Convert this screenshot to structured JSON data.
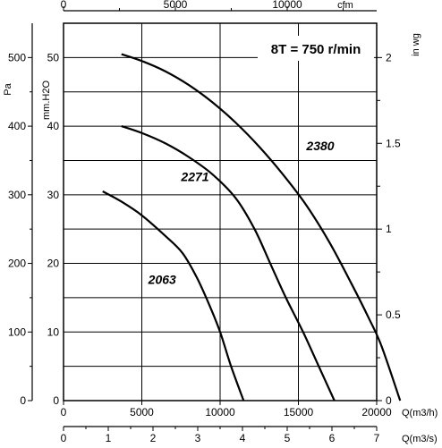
{
  "chart_data": {
    "type": "line",
    "title": "8T = 750 r/min",
    "grid": true,
    "axes": {
      "x_bottom": {
        "label": "Q(m3/h)",
        "ticks": [
          "0",
          "5000",
          "10000",
          "15000",
          "20000"
        ],
        "range": [
          0,
          20000
        ]
      },
      "x_bottom2": {
        "label": "Q(m3/s)",
        "ticks": [
          "0",
          "1",
          "2",
          "3",
          "4",
          "5",
          "6",
          "7"
        ],
        "range": [
          0,
          7
        ]
      },
      "x_top": {
        "label": "cfm",
        "ticks": [
          "0",
          "5000",
          "10000"
        ],
        "range": [
          0,
          14000
        ]
      },
      "y_left_outer": {
        "label": "Pa",
        "ticks": [
          "0",
          "100",
          "200",
          "300",
          "400",
          "500"
        ],
        "range": [
          0,
          550
        ]
      },
      "y_left_inner": {
        "label": "mm.H2O",
        "ticks": [
          "0",
          "10",
          "20",
          "30",
          "40",
          "50"
        ],
        "range": [
          0,
          55
        ]
      },
      "y_right": {
        "label": "in wg",
        "ticks": [
          "0",
          "0.5",
          "1",
          "1.5",
          "2"
        ],
        "range": [
          0,
          2.2
        ]
      }
    },
    "series": [
      {
        "name": "2063",
        "x": [
          2500,
          3700,
          5000,
          6500,
          7600,
          8500,
          9300,
          10000,
          10700,
          11500
        ],
        "y": [
          30.5,
          29,
          27,
          24,
          21.5,
          18,
          14,
          10,
          5,
          0
        ]
      },
      {
        "name": "2271",
        "x": [
          3700,
          5000,
          6500,
          8000,
          9500,
          11000,
          12200,
          13200,
          14200,
          15300,
          16300,
          17300
        ],
        "y": [
          40,
          39,
          37.5,
          35.5,
          33,
          29.5,
          25,
          20,
          15,
          10,
          5,
          0
        ]
      },
      {
        "name": "2380",
        "x": [
          3700,
          5000,
          6500,
          8000,
          9500,
          11000,
          12500,
          14000,
          15500,
          17000,
          18400,
          19500,
          20300,
          21500
        ],
        "y": [
          50.5,
          49.5,
          48,
          46,
          43.5,
          40.5,
          37,
          33,
          28.5,
          23,
          17,
          12,
          8,
          0
        ]
      }
    ]
  }
}
